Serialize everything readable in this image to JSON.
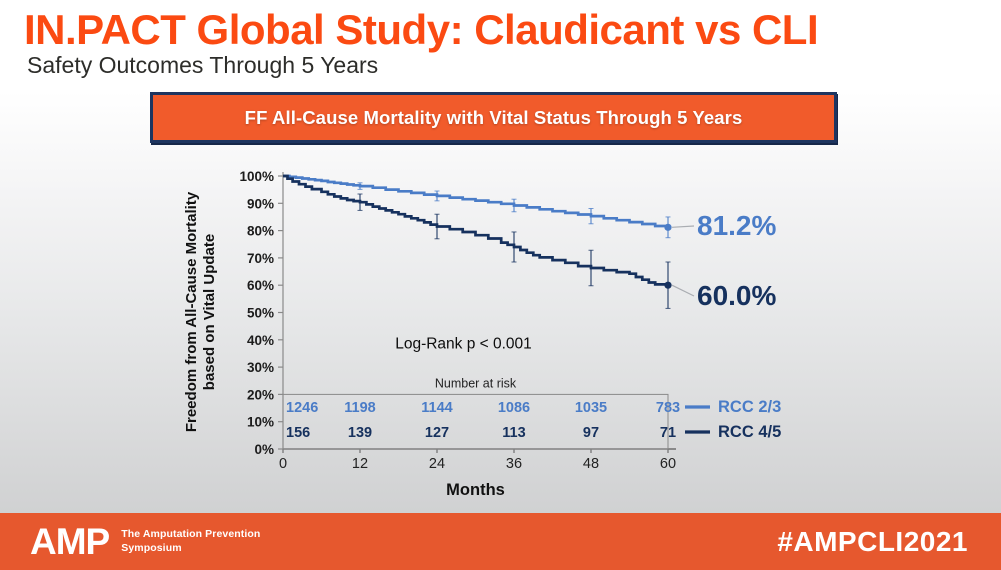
{
  "header": {
    "title": "IN.PACT Global Study: Claudicant vs CLI",
    "subtitle": "Safety Outcomes Through 5 Years"
  },
  "banner": {
    "text": "FF All-Cause Mortality with Vital Status Through 5 Years"
  },
  "chart_data": {
    "type": "line",
    "subtype": "kaplan-meier-step",
    "xlabel": "Months",
    "ylabel_line1": "Freedom from All-Cause Mortality",
    "ylabel_line2": "based on Vital Update",
    "xlim": [
      0,
      60
    ],
    "ylim": [
      0,
      100
    ],
    "x_ticks": [
      0,
      12,
      24,
      36,
      48,
      60
    ],
    "y_tick_labels": [
      "100%",
      "90%",
      "80%",
      "70%",
      "60%",
      "50%",
      "40%",
      "30%",
      "20%",
      "10%",
      "0%"
    ],
    "annotation": "Log-Rank p < 0.001",
    "legend_position": "right-of-risk-table",
    "grid": false,
    "series": [
      {
        "name": "RCC 2/3",
        "color": "#4a7cc7",
        "end_label": "81.2%",
        "points": [
          [
            0,
            100
          ],
          [
            1,
            99.7
          ],
          [
            2,
            99.4
          ],
          [
            3,
            99.1
          ],
          [
            4,
            98.8
          ],
          [
            5,
            98.5
          ],
          [
            6,
            98.2
          ],
          [
            7,
            97.8
          ],
          [
            8,
            97.5
          ],
          [
            9,
            97.2
          ],
          [
            10,
            96.9
          ],
          [
            11,
            96.6
          ],
          [
            12,
            96.3
          ],
          [
            14,
            95.7
          ],
          [
            16,
            95.0
          ],
          [
            18,
            94.4
          ],
          [
            20,
            93.8
          ],
          [
            22,
            93.2
          ],
          [
            24,
            92.7
          ],
          [
            26,
            92.1
          ],
          [
            28,
            91.5
          ],
          [
            30,
            91.0
          ],
          [
            32,
            90.4
          ],
          [
            34,
            89.8
          ],
          [
            36,
            89.2
          ],
          [
            38,
            88.5
          ],
          [
            40,
            87.8
          ],
          [
            42,
            87.1
          ],
          [
            44,
            86.5
          ],
          [
            46,
            85.9
          ],
          [
            48,
            85.3
          ],
          [
            50,
            84.5
          ],
          [
            52,
            83.8
          ],
          [
            54,
            83.1
          ],
          [
            56,
            82.4
          ],
          [
            58,
            81.7
          ],
          [
            60,
            81.2
          ]
        ],
        "error_bar_months": [
          12,
          24,
          36,
          48,
          60
        ],
        "error_bar_half_heights": [
          1.2,
          1.8,
          2.3,
          2.8,
          3.8
        ]
      },
      {
        "name": "RCC 4/5",
        "color": "#16315e",
        "end_label": "60.0%",
        "points": [
          [
            0,
            100
          ],
          [
            0.7,
            99.0
          ],
          [
            1.5,
            98.0
          ],
          [
            2.5,
            97.0
          ],
          [
            3.5,
            96.1
          ],
          [
            4.5,
            95.2
          ],
          [
            6,
            94.2
          ],
          [
            7,
            93.3
          ],
          [
            8,
            92.5
          ],
          [
            9,
            91.8
          ],
          [
            10,
            91.2
          ],
          [
            11,
            90.8
          ],
          [
            12,
            90.4
          ],
          [
            13,
            89.6
          ],
          [
            14,
            88.8
          ],
          [
            15,
            88.1
          ],
          [
            16,
            87.4
          ],
          [
            17,
            86.7
          ],
          [
            18,
            86.0
          ],
          [
            19,
            85.2
          ],
          [
            20,
            84.5
          ],
          [
            21,
            83.8
          ],
          [
            22,
            83.0
          ],
          [
            23,
            82.2
          ],
          [
            24,
            81.5
          ],
          [
            26,
            80.5
          ],
          [
            28,
            79.5
          ],
          [
            30,
            78.3
          ],
          [
            32,
            77.1
          ],
          [
            34,
            75.6
          ],
          [
            35,
            74.8
          ],
          [
            36,
            74.0
          ],
          [
            37,
            72.9
          ],
          [
            38,
            71.9
          ],
          [
            39,
            71.0
          ],
          [
            40,
            70.2
          ],
          [
            42,
            69.2
          ],
          [
            44,
            68.2
          ],
          [
            46,
            67.0
          ],
          [
            48,
            66.3
          ],
          [
            50,
            65.5
          ],
          [
            52,
            64.8
          ],
          [
            54,
            64.2
          ],
          [
            55,
            63.0
          ],
          [
            56,
            62.0
          ],
          [
            57,
            61.0
          ],
          [
            58,
            60.3
          ],
          [
            60,
            60.0
          ]
        ],
        "error_bar_months": [
          12,
          24,
          36,
          48,
          60
        ],
        "error_bar_half_heights": [
          3.0,
          4.5,
          5.5,
          6.5,
          8.5
        ]
      }
    ],
    "risk_table": {
      "label": "Number at risk",
      "rows": [
        {
          "name": "RCC 2/3",
          "color": "#4a7cc7",
          "values": [
            "1246",
            "1198",
            "1144",
            "1086",
            "1035",
            "783"
          ]
        },
        {
          "name": "RCC 4/5",
          "color": "#16315e",
          "values": [
            "156",
            "139",
            "127",
            "113",
            "97",
            "71"
          ]
        }
      ]
    }
  },
  "footer": {
    "logo": "AMP",
    "tagline_line1": "The Amputation Prevention",
    "tagline_line2": "Symposium",
    "hashtag": "#AMPCLI2021"
  },
  "colors": {
    "title_orange": "#fb4a12",
    "banner_orange": "#f15b2b",
    "banner_border_navy": "#1e3560",
    "footer_orange": "#e6582e",
    "series_light_blue": "#4a7cc7",
    "series_navy": "#16315e",
    "axis_gray": "#8a8a8a"
  }
}
